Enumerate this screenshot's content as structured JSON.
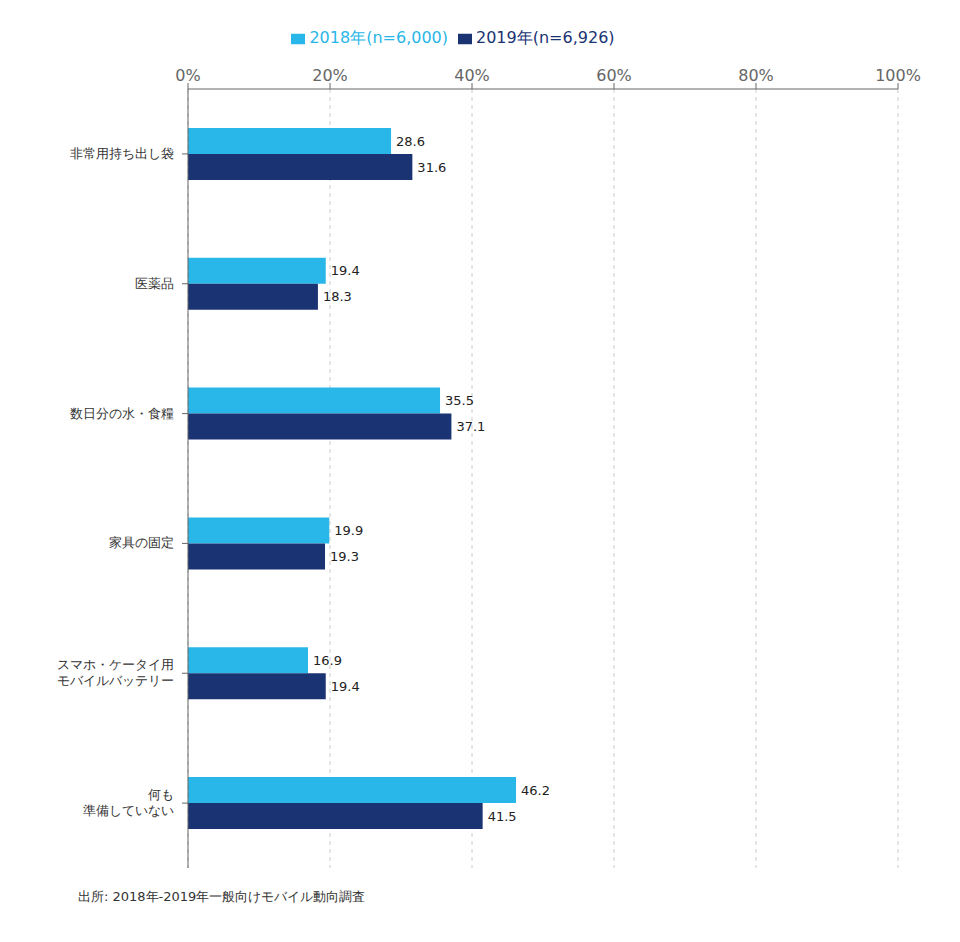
{
  "chart_data": {
    "type": "bar",
    "orientation": "horizontal",
    "categories": [
      "非常用持ち出し袋",
      "医薬品",
      "数日分の水・食糧",
      "家具の固定",
      "スマホ・ケータイ用\nモバイルバッテリー",
      "何も\n準備していない"
    ],
    "series": [
      {
        "name": "2018年(n=6,000)",
        "color": "#29B6E8",
        "values": [
          28.6,
          19.4,
          35.5,
          19.9,
          16.9,
          46.2
        ]
      },
      {
        "name": "2019年(n=6,926)",
        "color": "#1A3373",
        "values": [
          31.6,
          18.3,
          37.1,
          19.3,
          19.4,
          41.5
        ]
      }
    ],
    "xlim": [
      0,
      100
    ],
    "xticks": [
      {
        "value": 0,
        "label": "0%"
      },
      {
        "value": 20,
        "label": "20%"
      },
      {
        "value": 40,
        "label": "40%"
      },
      {
        "value": 60,
        "label": "60%"
      },
      {
        "value": 80,
        "label": "80%"
      },
      {
        "value": 100,
        "label": "100%"
      }
    ],
    "grid": true,
    "legend": "top",
    "data_labels": true,
    "annotations": [
      "出所: 2018年-2019年一般向けモバイル動向調査"
    ]
  }
}
